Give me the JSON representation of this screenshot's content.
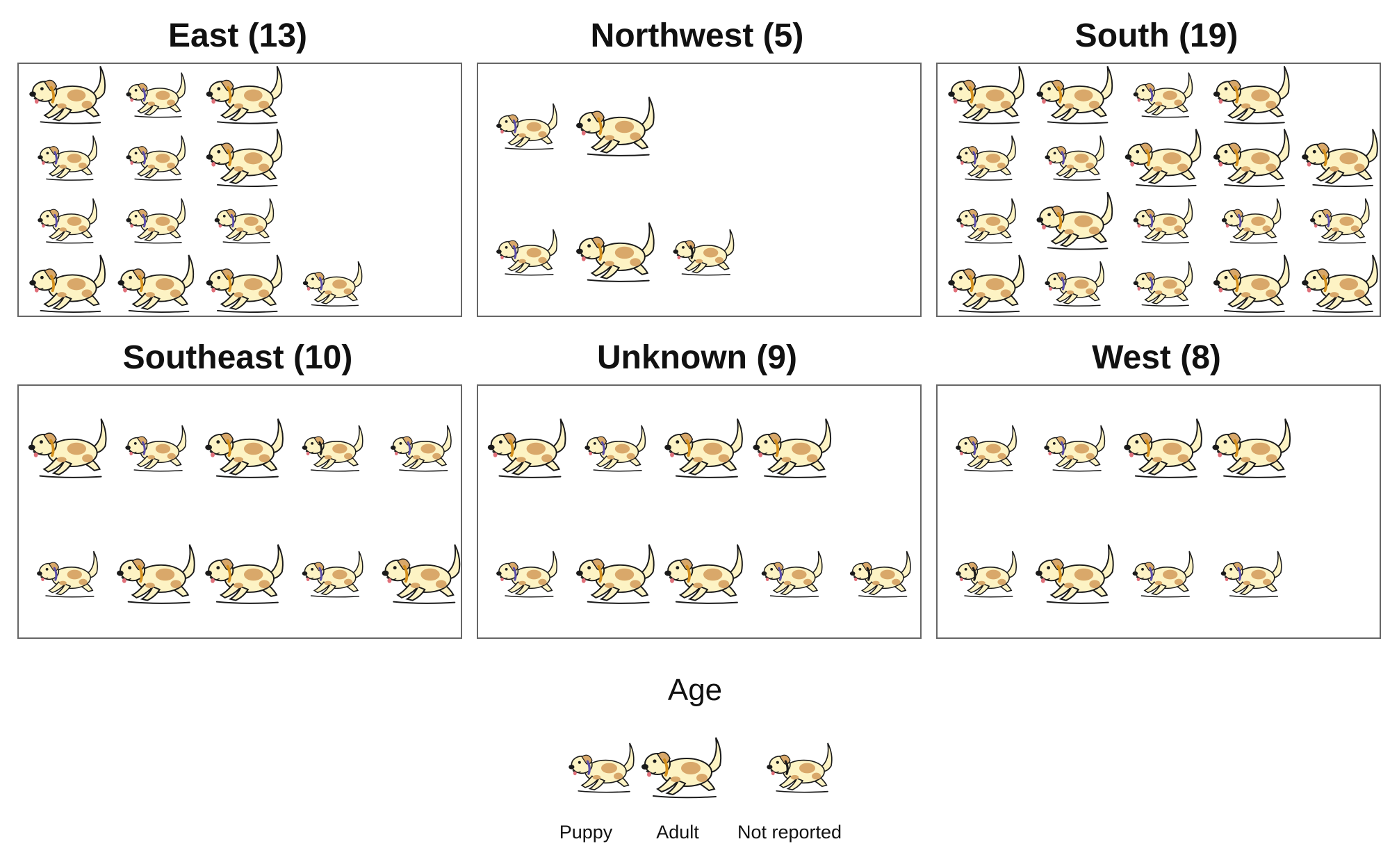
{
  "chart_data": {
    "type": "pictogram",
    "title": "",
    "legend": {
      "title": "Age",
      "placement": "bottom-center",
      "entries": [
        {
          "key": "puppy",
          "label": "Puppy",
          "collar": "#5b4ea8"
        },
        {
          "key": "adult",
          "label": "Adult",
          "collar": "#d4901e"
        },
        {
          "key": "not_reported",
          "label": "Not reported",
          "collar": "#1a1a1a"
        }
      ]
    },
    "panels": [
      {
        "title": "East (13)",
        "category": "East",
        "count": 13,
        "rows": [
          [
            "adult",
            "puppy",
            "adult"
          ],
          [
            "puppy",
            "puppy",
            "adult"
          ],
          [
            "puppy",
            "puppy",
            "puppy"
          ],
          [
            "adult",
            "adult",
            "adult",
            "puppy"
          ]
        ]
      },
      {
        "title": "Northwest (5)",
        "category": "Northwest",
        "count": 5,
        "rows": [
          [
            "puppy",
            "adult"
          ],
          [
            "puppy",
            "adult",
            "not_reported"
          ]
        ]
      },
      {
        "title": "South (19)",
        "category": "South",
        "count": 19,
        "rows": [
          [
            "adult",
            "adult",
            "puppy",
            "adult"
          ],
          [
            "puppy",
            "puppy",
            "adult",
            "adult",
            "adult"
          ],
          [
            "puppy",
            "adult",
            "puppy",
            "puppy",
            "puppy"
          ],
          [
            "adult",
            "puppy",
            "puppy",
            "adult",
            "adult"
          ]
        ]
      },
      {
        "title": "Southeast (10)",
        "category": "Southeast",
        "count": 10,
        "rows": [
          [
            "adult",
            "puppy",
            "adult",
            "not_reported",
            "puppy"
          ],
          [
            "puppy",
            "adult",
            "adult",
            "puppy",
            "adult"
          ]
        ]
      },
      {
        "title": "Unknown (9)",
        "category": "Unknown",
        "count": 9,
        "rows": [
          [
            "adult",
            "puppy",
            "adult",
            "adult"
          ],
          [
            "puppy",
            "adult",
            "adult",
            "puppy",
            "not_reported"
          ]
        ]
      },
      {
        "title": "West (8)",
        "category": "West",
        "count": 8,
        "rows": [
          [
            "puppy",
            "puppy",
            "adult",
            "adult"
          ],
          [
            "not_reported",
            "adult",
            "puppy",
            "puppy"
          ]
        ]
      }
    ]
  },
  "colors": {
    "fur": "#fdf3c4",
    "patch": "#d9a86a",
    "outline": "#1a1a1a",
    "border": "#666666"
  }
}
